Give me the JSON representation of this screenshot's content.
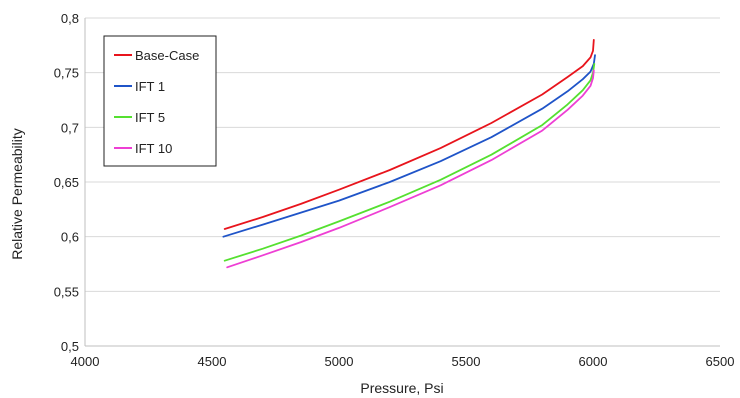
{
  "chart_data": {
    "type": "line",
    "title": "",
    "xlabel": "Pressure, Psi",
    "ylabel": "Relative Permeability",
    "xlim": [
      4000,
      6500
    ],
    "ylim": [
      0.5,
      0.8
    ],
    "x_ticks": [
      "4000",
      "4500",
      "5000",
      "5500",
      "6000",
      "6500"
    ],
    "y_ticks": [
      "0,5",
      "0,55",
      "0,6",
      "0,65",
      "0,7",
      "0,75",
      "0,8"
    ],
    "grid": true,
    "legend_position": "top-left",
    "series": [
      {
        "name": "Base-Case",
        "color": "#e8141c",
        "x": [
          4550,
          4700,
          4850,
          5000,
          5200,
          5400,
          5600,
          5800,
          5900,
          5960,
          5990,
          6000,
          6003
        ],
        "y": [
          0.607,
          0.618,
          0.63,
          0.643,
          0.661,
          0.681,
          0.704,
          0.73,
          0.746,
          0.756,
          0.764,
          0.77,
          0.78
        ]
      },
      {
        "name": "IFT 1",
        "color": "#1f54c8",
        "x": [
          4545,
          4700,
          4850,
          5000,
          5200,
          5400,
          5600,
          5800,
          5900,
          5960,
          5990,
          6003,
          6008
        ],
        "y": [
          0.6,
          0.611,
          0.622,
          0.633,
          0.65,
          0.669,
          0.691,
          0.717,
          0.733,
          0.744,
          0.751,
          0.758,
          0.766
        ]
      },
      {
        "name": "IFT 5",
        "color": "#55e030",
        "x": [
          4550,
          4700,
          4850,
          5000,
          5200,
          5400,
          5600,
          5800,
          5900,
          5960,
          5990,
          6000,
          6005
        ],
        "y": [
          0.578,
          0.589,
          0.601,
          0.614,
          0.632,
          0.652,
          0.675,
          0.702,
          0.721,
          0.734,
          0.743,
          0.75,
          0.758
        ]
      },
      {
        "name": "IFT 10",
        "color": "#ee3fd4",
        "x": [
          4560,
          4700,
          4850,
          5000,
          5200,
          5400,
          5600,
          5800,
          5900,
          5960,
          5990,
          6000,
          6003
        ],
        "y": [
          0.572,
          0.583,
          0.595,
          0.608,
          0.627,
          0.647,
          0.67,
          0.697,
          0.716,
          0.729,
          0.738,
          0.745,
          0.752
        ]
      }
    ]
  }
}
